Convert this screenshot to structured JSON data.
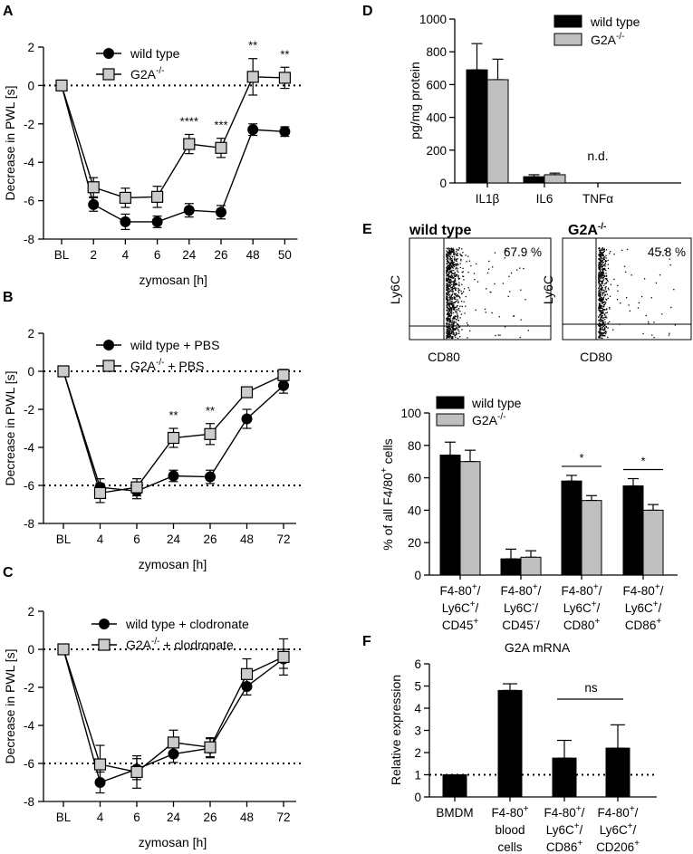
{
  "chart_data": [
    {
      "panel": "A",
      "type": "line",
      "xlabel": "zymosan [h]",
      "ylabel": "Decrease in PWL [s]",
      "ylim": [
        -8,
        2
      ],
      "yticks": [
        "2",
        "0",
        "-2",
        "-4",
        "-6",
        "-8"
      ],
      "categories": [
        "BL",
        "2",
        "4",
        "6",
        "24",
        "26",
        "48",
        "50"
      ],
      "legend": {
        "wt": "wild type",
        "g2a": "G2A",
        "g2a_sup": "-/-"
      },
      "series": [
        {
          "name": "wild type",
          "values": [
            0,
            -6.2,
            -7.1,
            -7.1,
            -6.5,
            -6.6,
            -2.3,
            -2.4
          ],
          "errors": [
            0,
            0.35,
            0.4,
            0.3,
            0.35,
            0.35,
            0.3,
            0.25
          ]
        },
        {
          "name": "G2A-/-",
          "values": [
            0,
            -5.3,
            -5.85,
            -5.8,
            -3.05,
            -3.25,
            0.45,
            0.4
          ],
          "errors": [
            0,
            0.5,
            0.5,
            0.55,
            0.5,
            0.5,
            0.95,
            0.55
          ]
        }
      ],
      "annotations": [
        {
          "index": 4,
          "text": "****"
        },
        {
          "index": 5,
          "text": "***"
        },
        {
          "index": 6,
          "text": "**"
        },
        {
          "index": 7,
          "text": "**"
        }
      ]
    },
    {
      "panel": "B",
      "type": "line",
      "xlabel": "zymosan [h]",
      "ylabel": "Decrease in PWL [s]",
      "ylim": [
        -8,
        2
      ],
      "yticks": [
        "2",
        "0",
        "-2",
        "-4",
        "-6",
        "-8"
      ],
      "categories": [
        "BL",
        "4",
        "6",
        "24",
        "26",
        "48",
        "72"
      ],
      "legend": {
        "wt": "wild type + PBS",
        "g2a": "G2A",
        "g2a_sup": "-/-",
        "g2a_post": " + PBS"
      },
      "series": [
        {
          "name": "wild type + PBS",
          "values": [
            0,
            -6.1,
            -6.3,
            -5.5,
            -5.55,
            -2.5,
            -0.75
          ],
          "errors": [
            0,
            0.45,
            0.4,
            0.3,
            0.35,
            0.5,
            0.4
          ]
        },
        {
          "name": "G2A-/- + PBS",
          "values": [
            0,
            -6.4,
            -6.1,
            -3.5,
            -3.3,
            -1.1,
            -0.2
          ],
          "errors": [
            0,
            0.5,
            0.45,
            0.5,
            0.55,
            0.15,
            0.3
          ]
        }
      ],
      "annotations": [
        {
          "index": 3,
          "text": "**"
        },
        {
          "index": 4,
          "text": "**"
        }
      ]
    },
    {
      "panel": "C",
      "type": "line",
      "xlabel": "zymosan [h]",
      "ylabel": "Decrease in PWL [s]",
      "ylim": [
        -8,
        2
      ],
      "yticks": [
        "2",
        "0",
        "-2",
        "-4",
        "-6",
        "-8"
      ],
      "categories": [
        "BL",
        "4",
        "6",
        "24",
        "26",
        "48",
        "72"
      ],
      "legend": {
        "wt": "wild type + clodronate",
        "g2a": "G2A",
        "g2a_sup": "-/-",
        "g2a_post": " + clodronate"
      },
      "series": [
        {
          "name": "wild type + clodronate",
          "values": [
            0,
            -7.0,
            -6.3,
            -5.5,
            -5.2,
            -1.95,
            -0.5
          ],
          "errors": [
            0,
            0.55,
            0.55,
            0.45,
            0.5,
            0.45,
            0.5
          ]
        },
        {
          "name": "G2A-/- + clodronate",
          "values": [
            0,
            -6.05,
            -6.45,
            -4.9,
            -5.15,
            -1.3,
            -0.4
          ],
          "errors": [
            0,
            1.0,
            0.85,
            0.65,
            0.5,
            0.8,
            0.95
          ]
        }
      ],
      "annotations": []
    },
    {
      "panel": "D",
      "type": "bar",
      "ylabel": "pg/mg protein",
      "ylim": [
        0,
        1000
      ],
      "yticks": [
        "1000",
        "800",
        "600",
        "400",
        "200",
        "0"
      ],
      "categories": [
        "IL1β",
        "IL6",
        "TNFα"
      ],
      "legend": {
        "wt": "wild type",
        "g2a": "G2A",
        "g2a_sup": "-/-"
      },
      "series": [
        {
          "name": "wild type",
          "values": [
            690,
            38,
            null
          ],
          "errors": [
            160,
            12,
            null
          ]
        },
        {
          "name": "G2A-/-",
          "values": [
            630,
            50,
            null
          ],
          "errors": [
            125,
            10,
            null
          ]
        }
      ],
      "annotations": [
        {
          "index": 2,
          "text": "n.d."
        }
      ]
    },
    {
      "panel": "E",
      "type": "scatter",
      "subpanels": [
        {
          "title": "wild type",
          "percent": "67.9 %",
          "xlabel": "CD80",
          "ylabel": "Ly6C"
        },
        {
          "title": "G2A",
          "title_sup": "-/-",
          "percent": "45.8 %",
          "xlabel": "CD80",
          "ylabel": "Ly6C"
        }
      ]
    },
    {
      "panel": "E",
      "type": "bar",
      "ylabel_main": "% of all F4/80",
      "ylabel_sup": "+",
      "ylabel_tail": " cells",
      "ylim": [
        0,
        100
      ],
      "yticks": [
        "100",
        "80",
        "60",
        "40",
        "20",
        "0"
      ],
      "categories": [
        [
          "F4-80+/",
          "Ly6C+/",
          "CD45+"
        ],
        [
          "F4-80+/",
          "Ly6C-/",
          "CD45-/"
        ],
        [
          "F4-80+/",
          "Ly6C+/",
          "CD80+"
        ],
        [
          "F4-80+/",
          "Ly6C+/",
          "CD86+"
        ]
      ],
      "legend": {
        "wt": "wild type",
        "g2a": "G2A",
        "g2a_sup": "-/-"
      },
      "series": [
        {
          "name": "wild type",
          "values": [
            74,
            10,
            58,
            55
          ],
          "errors": [
            8,
            6,
            3.5,
            4.5
          ]
        },
        {
          "name": "G2A-/-",
          "values": [
            70,
            11,
            46,
            40
          ],
          "errors": [
            7,
            4,
            3,
            3.5
          ]
        }
      ],
      "annotations": [
        {
          "index": 2,
          "text": "*"
        },
        {
          "index": 3,
          "text": "*"
        }
      ]
    },
    {
      "panel": "F",
      "type": "bar",
      "title": "G2A mRNA",
      "ylabel": "Relative expression",
      "ylim": [
        0,
        6
      ],
      "yticks": [
        "6",
        "5",
        "4",
        "3",
        "2",
        "1",
        "0"
      ],
      "categories": [
        [
          "BMDM"
        ],
        [
          "F4-80+",
          "blood",
          "cells"
        ],
        [
          "F4-80+/",
          "Ly6C+/",
          "CD86+"
        ],
        [
          "F4-80+/",
          "Ly6C+/",
          "CD206+"
        ]
      ],
      "values": [
        1.0,
        4.8,
        1.75,
        2.2
      ],
      "errors": [
        0,
        0.3,
        0.8,
        1.05
      ],
      "annotations": [
        {
          "from": 2,
          "to": 3,
          "text": "ns"
        }
      ]
    }
  ]
}
